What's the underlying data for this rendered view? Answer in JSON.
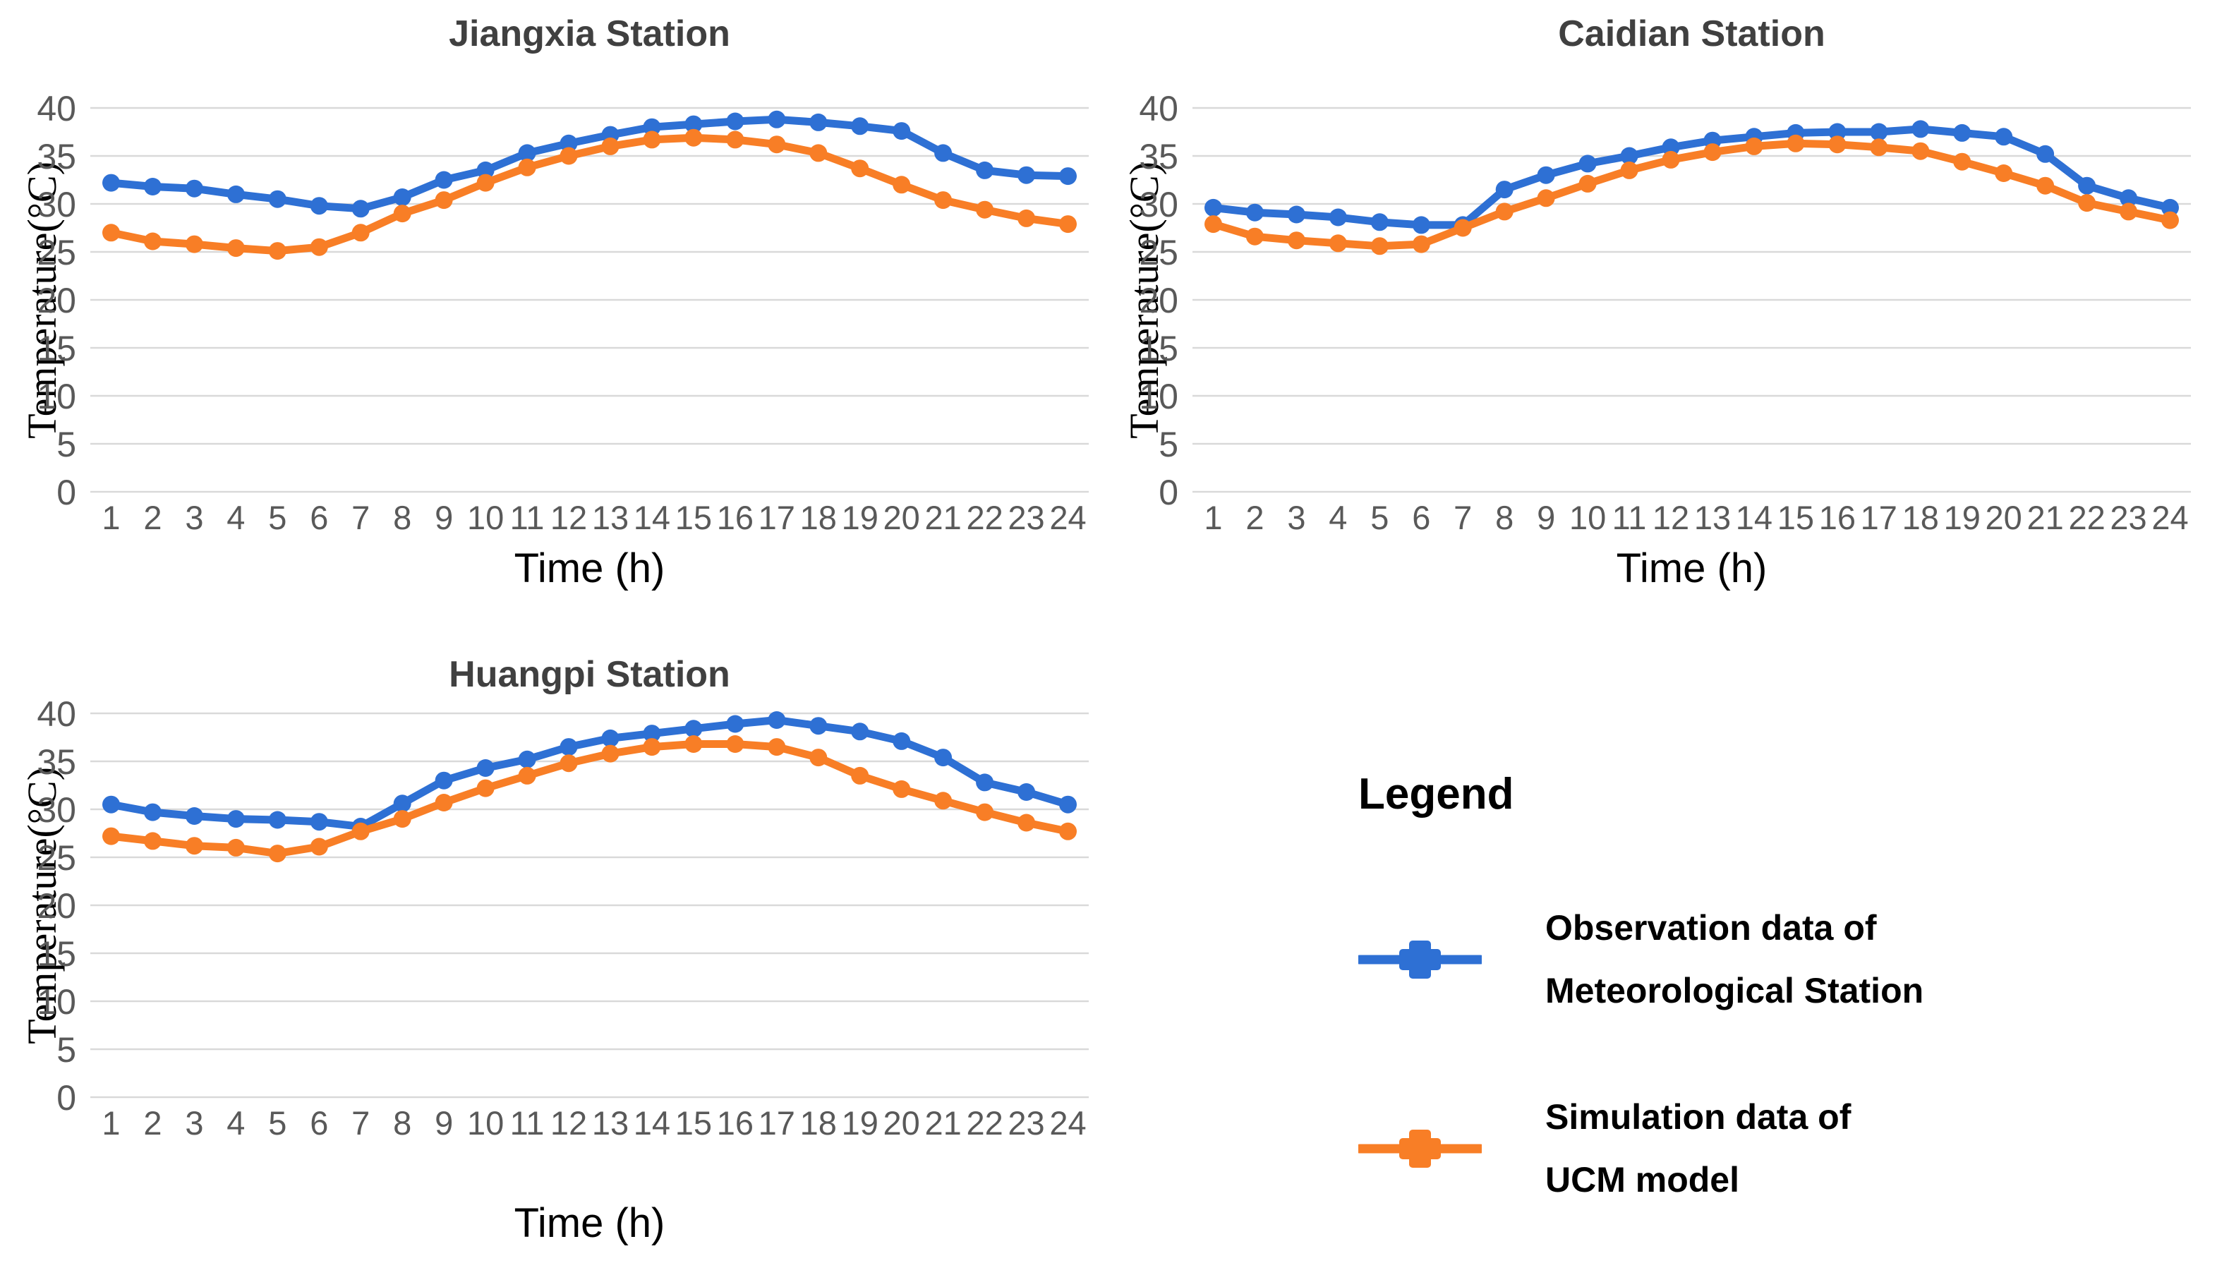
{
  "page": {
    "background": "#ffffff"
  },
  "colors": {
    "observation": "#2E70D4",
    "simulation": "#F87E26",
    "gridline": "#D9D9D9",
    "tick_text": "#595959",
    "title_text": "#404040",
    "axis_text": "#000000"
  },
  "legend": {
    "title": "Legend",
    "items": [
      {
        "key": "observation",
        "color": "#2E70D4",
        "line1": "Observation data of",
        "line2": "Meteorological Station"
      },
      {
        "key": "simulation",
        "color": "#F87E26",
        "line1": "Simulation data of",
        "line2": "UCM model"
      }
    ]
  },
  "chart_data": [
    {
      "type": "line",
      "title": "Jiangxia Station",
      "xlabel": "Time (h)",
      "ylabel": "Temperature(°C)",
      "x": [
        1,
        2,
        3,
        4,
        5,
        6,
        7,
        8,
        9,
        10,
        11,
        12,
        13,
        14,
        15,
        16,
        17,
        18,
        19,
        20,
        21,
        22,
        23,
        24
      ],
      "ylim": [
        0,
        40
      ],
      "ytick_step": 5,
      "grid": true,
      "legend_position": "separate-panel",
      "series": [
        {
          "key": "observation",
          "name": "Observation data of Meteorological Station",
          "color": "#2E70D4",
          "values": [
            32.2,
            31.8,
            31.6,
            31.0,
            30.5,
            29.8,
            29.5,
            30.7,
            32.5,
            33.5,
            35.3,
            36.3,
            37.2,
            38.0,
            38.3,
            38.6,
            38.8,
            38.5,
            38.1,
            37.6,
            35.3,
            33.5,
            33.0,
            32.9
          ]
        },
        {
          "key": "simulation",
          "name": "Simulation data of UCM model",
          "color": "#F87E26",
          "values": [
            27.0,
            26.1,
            25.8,
            25.4,
            25.1,
            25.5,
            27.0,
            29.0,
            30.4,
            32.2,
            33.8,
            35.0,
            36.0,
            36.7,
            36.9,
            36.7,
            36.2,
            35.3,
            33.7,
            32.0,
            30.4,
            29.4,
            28.5,
            27.9
          ]
        }
      ]
    },
    {
      "type": "line",
      "title": "Caidian Station",
      "xlabel": "Time (h)",
      "ylabel": "Temperature(°C)",
      "x": [
        1,
        2,
        3,
        4,
        5,
        6,
        7,
        8,
        9,
        10,
        11,
        12,
        13,
        14,
        15,
        16,
        17,
        18,
        19,
        20,
        21,
        22,
        23,
        24
      ],
      "ylim": [
        0,
        40
      ],
      "ytick_step": 5,
      "grid": true,
      "legend_position": "separate-panel",
      "series": [
        {
          "key": "observation",
          "name": "Observation data of Meteorological Station",
          "color": "#2E70D4",
          "values": [
            29.6,
            29.1,
            28.9,
            28.6,
            28.1,
            27.8,
            27.8,
            31.5,
            33.0,
            34.2,
            35.0,
            35.9,
            36.6,
            37.0,
            37.4,
            37.5,
            37.5,
            37.8,
            37.4,
            37.0,
            35.2,
            31.9,
            30.6,
            29.6
          ]
        },
        {
          "key": "simulation",
          "name": "Simulation data of UCM model",
          "color": "#F87E26",
          "values": [
            27.9,
            26.6,
            26.2,
            25.9,
            25.6,
            25.8,
            27.5,
            29.2,
            30.6,
            32.1,
            33.5,
            34.6,
            35.4,
            36.0,
            36.3,
            36.2,
            35.9,
            35.5,
            34.4,
            33.2,
            31.9,
            30.1,
            29.2,
            28.3
          ]
        }
      ]
    },
    {
      "type": "line",
      "title": "Huangpi Station",
      "xlabel": "Time (h)",
      "ylabel": "Temperature(°C)",
      "x": [
        1,
        2,
        3,
        4,
        5,
        6,
        7,
        8,
        9,
        10,
        11,
        12,
        13,
        14,
        15,
        16,
        17,
        18,
        19,
        20,
        21,
        22,
        23,
        24
      ],
      "ylim": [
        0,
        40
      ],
      "ytick_step": 5,
      "grid": true,
      "legend_position": "separate-panel",
      "series": [
        {
          "key": "observation",
          "name": "Observation data of Meteorological Station",
          "color": "#2E70D4",
          "values": [
            30.5,
            29.7,
            29.3,
            29.0,
            28.9,
            28.7,
            28.2,
            30.6,
            33.0,
            34.3,
            35.2,
            36.5,
            37.4,
            37.9,
            38.4,
            38.9,
            39.3,
            38.7,
            38.1,
            37.1,
            35.4,
            32.8,
            31.8,
            30.5
          ]
        },
        {
          "key": "simulation",
          "name": "Simulation data of UCM model",
          "color": "#F87E26",
          "values": [
            27.2,
            26.7,
            26.2,
            26.0,
            25.4,
            26.1,
            27.7,
            29.0,
            30.7,
            32.2,
            33.5,
            34.8,
            35.8,
            36.5,
            36.8,
            36.8,
            36.5,
            35.4,
            33.5,
            32.1,
            30.9,
            29.7,
            28.6,
            27.7
          ]
        }
      ]
    }
  ]
}
